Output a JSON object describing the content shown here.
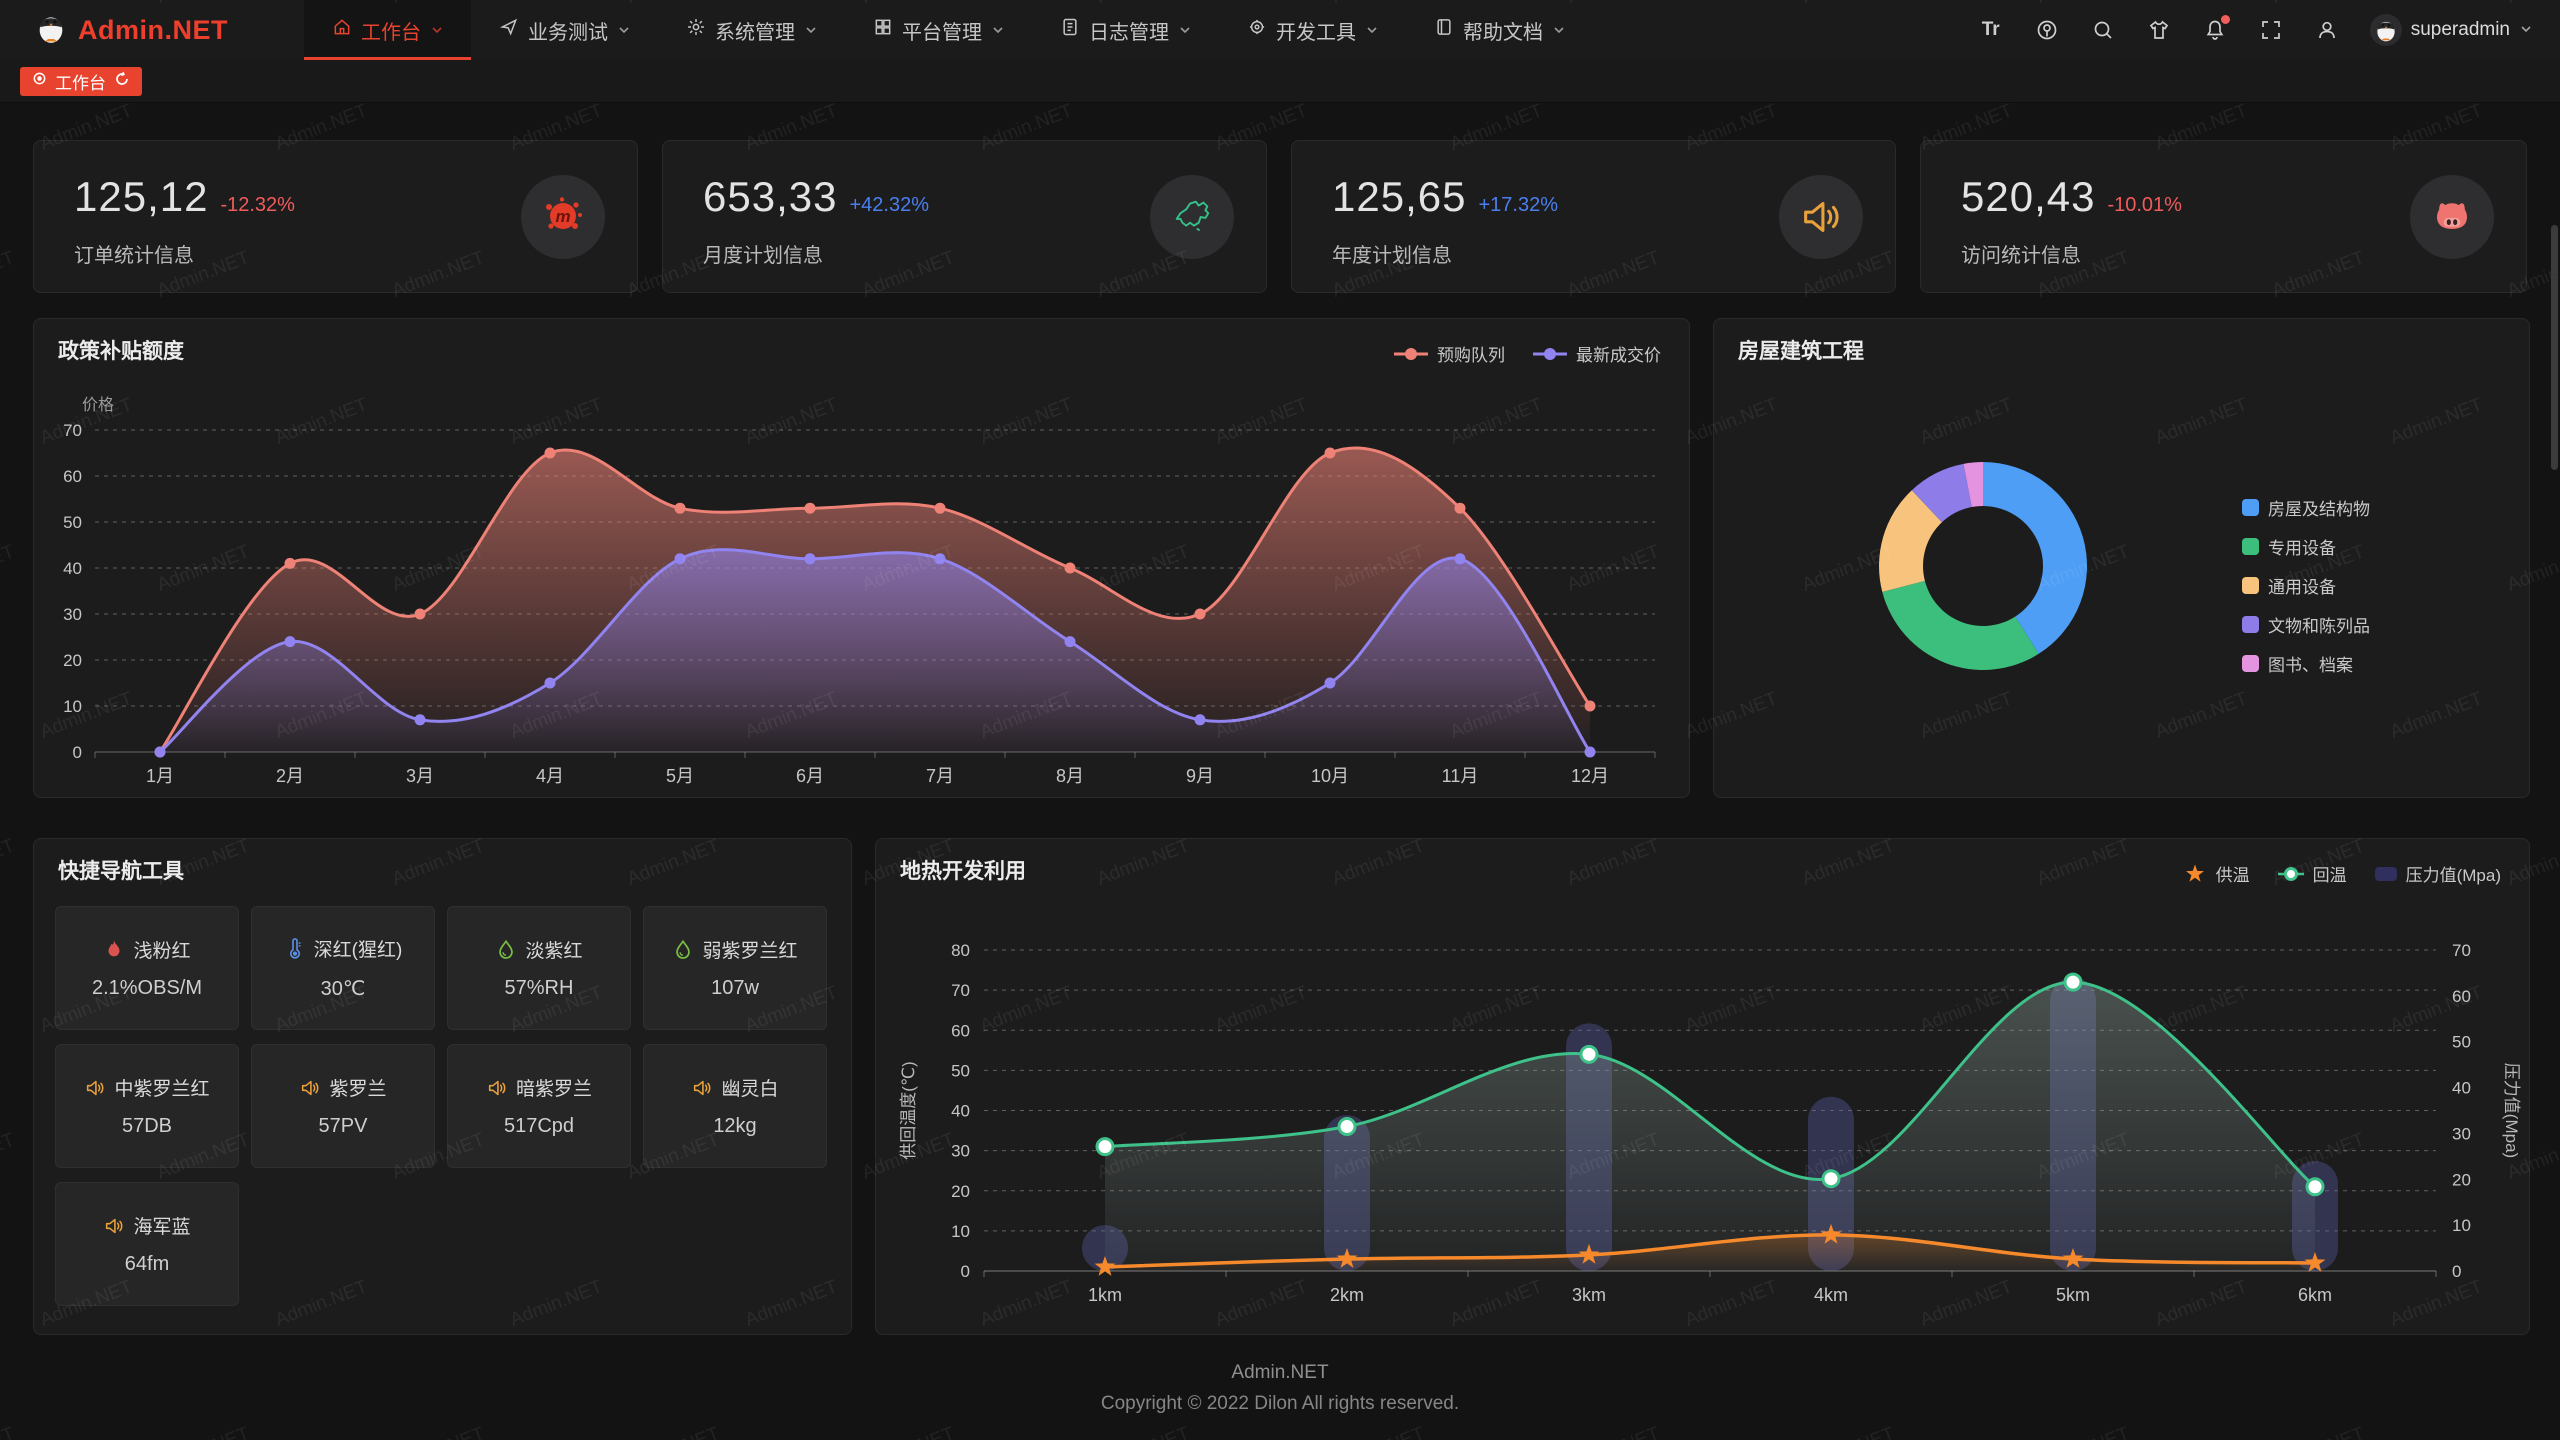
{
  "watermark": "Admin.NET",
  "header": {
    "logo_text": "Admin.NET",
    "font_size_icon_label": "Tr",
    "user": "superadmin",
    "menu": [
      {
        "label": "工作台",
        "icon": "home-icon",
        "active": true
      },
      {
        "label": "业务测试",
        "icon": "send-icon",
        "active": false
      },
      {
        "label": "系统管理",
        "icon": "gear-icon",
        "active": false
      },
      {
        "label": "平台管理",
        "icon": "grid-icon",
        "active": false
      },
      {
        "label": "日志管理",
        "icon": "log-icon",
        "active": false
      },
      {
        "label": "开发工具",
        "icon": "dev-tools-icon",
        "active": false
      },
      {
        "label": "帮助文档",
        "icon": "help-doc-icon",
        "active": false
      }
    ]
  },
  "tabbar": {
    "active_tab": "工作台"
  },
  "stat_cards": [
    {
      "value": "125,12",
      "delta": "-12.32%",
      "trend": "down",
      "label": "订单统计信息",
      "icon": "splat-icon"
    },
    {
      "value": "653,33",
      "delta": "+42.32%",
      "trend": "up",
      "label": "月度计划信息",
      "icon": "china-map-icon"
    },
    {
      "value": "125,65",
      "delta": "+17.32%",
      "trend": "up",
      "label": "年度计划信息",
      "icon": "speaker-icon"
    },
    {
      "value": "520,43",
      "delta": "-10.01%",
      "trend": "down",
      "label": "访问统计信息",
      "icon": "cat-icon"
    }
  ],
  "chart_data": [
    {
      "id": "policy",
      "type": "area",
      "title": "政策补贴额度",
      "ylabel": "价格",
      "ylim": [
        0,
        70
      ],
      "grid": true,
      "legend_position": "top-right",
      "categories": [
        "1月",
        "2月",
        "3月",
        "4月",
        "5月",
        "6月",
        "7月",
        "8月",
        "9月",
        "10月",
        "11月",
        "12月"
      ],
      "series": [
        {
          "name": "预购队列",
          "color": "#ee8276",
          "values": [
            0,
            41,
            30,
            65,
            53,
            53,
            53,
            40,
            30,
            65,
            53,
            10
          ]
        },
        {
          "name": "最新成交价",
          "color": "#9184f0",
          "values": [
            0,
            24,
            7,
            15,
            42,
            42,
            42,
            24,
            7,
            15,
            42,
            0
          ]
        }
      ]
    },
    {
      "id": "housing",
      "type": "pie",
      "title": "房屋建筑工程",
      "inner_radius_ratio": 0.58,
      "legend_position": "right",
      "slices": [
        {
          "label": "房屋及结构物",
          "value": 41,
          "color": "#4f9ef5"
        },
        {
          "label": "专用设备",
          "value": 30,
          "color": "#3cbe7d"
        },
        {
          "label": "通用设备",
          "value": 17,
          "color": "#f8c37d"
        },
        {
          "label": "文物和陈列品",
          "value": 9,
          "color": "#8e7ce8"
        },
        {
          "label": "图书、档案",
          "value": 3,
          "color": "#e493e0"
        }
      ]
    },
    {
      "id": "geothermal",
      "type": "line",
      "title": "地热开发利用",
      "ylabel_left": "供回温度(℃)",
      "ylabel_right": "压力值(Mpa)",
      "ylim_left": [
        0,
        80
      ],
      "ylim_right": [
        0,
        70
      ],
      "legend_position": "top-right",
      "categories": [
        "1km",
        "2km",
        "3km",
        "4km",
        "5km",
        "6km"
      ],
      "series": [
        {
          "name": "供温",
          "kind": "line",
          "axis": "left",
          "marker": "star",
          "color": "#f5892b",
          "values": [
            1,
            3,
            4,
            9,
            3,
            2
          ]
        },
        {
          "name": "回温",
          "kind": "line",
          "axis": "left",
          "marker": "circle",
          "color": "#3ec28a",
          "values": [
            31,
            36,
            54,
            23,
            72,
            21
          ]
        },
        {
          "name": "压力值(Mpa)",
          "kind": "bar",
          "axis": "right",
          "color": "#312f5e",
          "bar_fill": "rgba(98,100,180,0.34)",
          "values": [
            10,
            34,
            54,
            38,
            64,
            24
          ]
        }
      ]
    }
  ],
  "quick_nav": {
    "title": "快捷导航工具",
    "items": [
      {
        "icon": "fire-icon",
        "icon_color": "#d9534f",
        "name": "浅粉红",
        "value": "2.1%OBS/M"
      },
      {
        "icon": "thermometer-icon",
        "icon_color": "#5b8fe1",
        "name": "深红(猩红)",
        "value": "30℃"
      },
      {
        "icon": "drop-icon",
        "icon_color": "#7ac143",
        "name": "淡紫红",
        "value": "57%RH"
      },
      {
        "icon": "drop-icon",
        "icon_color": "#7ac143",
        "name": "弱紫罗兰红",
        "value": "107w"
      },
      {
        "icon": "speaker-icon",
        "icon_color": "#e9a23b",
        "name": "中紫罗兰红",
        "value": "57DB"
      },
      {
        "icon": "speaker-icon",
        "icon_color": "#e9a23b",
        "name": "紫罗兰",
        "value": "57PV"
      },
      {
        "icon": "speaker-icon",
        "icon_color": "#e9a23b",
        "name": "暗紫罗兰",
        "value": "517Cpd"
      },
      {
        "icon": "speaker-icon",
        "icon_color": "#e9a23b",
        "name": "幽灵白",
        "value": "12kg"
      },
      {
        "icon": "speaker-icon",
        "icon_color": "#e9a23b",
        "name": "海军蓝",
        "value": "64fm"
      }
    ]
  },
  "footer": {
    "line1": "Admin.NET",
    "line2": "Copyright © 2022 Dilon All rights reserved."
  }
}
